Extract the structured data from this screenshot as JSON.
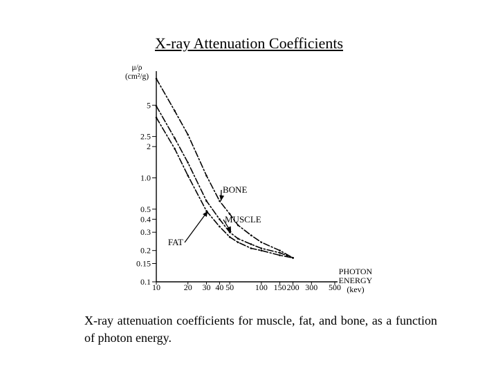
{
  "chart_data": {
    "type": "line",
    "title": "X-ray Attenuation Coefficients",
    "ylabel_line1": "μ/ρ",
    "ylabel_line2": "(cm²/g)",
    "xlabel": [
      "PHOTON",
      "ENERGY",
      "(kev)"
    ],
    "y_ticks": [
      "5",
      "2.5",
      "2",
      "1.0",
      "0.5",
      "0.4",
      "0.3",
      "0.2",
      "0.15",
      "0.1"
    ],
    "x_ticks": [
      "10",
      "20",
      "30",
      "40",
      "50",
      "100",
      "150",
      "200",
      "300",
      "500"
    ],
    "x_log": true,
    "y_log": true,
    "xlim": [
      10,
      500
    ],
    "ylim": [
      0.1,
      10
    ],
    "series": [
      {
        "name": "BONE",
        "x": [
          10,
          15,
          20,
          30,
          40,
          50,
          60,
          80,
          100,
          150,
          200
        ],
        "y": [
          9.0,
          4.4,
          2.6,
          1.05,
          0.6,
          0.45,
          0.35,
          0.28,
          0.24,
          0.2,
          0.17
        ],
        "style": "dash-dot"
      },
      {
        "name": "MUSCLE",
        "x": [
          10,
          15,
          20,
          30,
          40,
          50,
          60,
          80,
          100,
          150,
          200
        ],
        "y": [
          4.9,
          2.4,
          1.4,
          0.6,
          0.4,
          0.3,
          0.26,
          0.23,
          0.21,
          0.19,
          0.17
        ],
        "style": "dash-dot"
      },
      {
        "name": "FAT",
        "x": [
          10,
          15,
          20,
          30,
          40,
          50,
          60,
          80,
          100,
          150,
          200
        ],
        "y": [
          3.8,
          1.9,
          1.05,
          0.48,
          0.34,
          0.27,
          0.24,
          0.21,
          0.2,
          0.18,
          0.17
        ],
        "style": "dash-dot"
      }
    ],
    "annotations": [
      {
        "text": "BONE",
        "series": "BONE"
      },
      {
        "text": "MUSCLE",
        "series": "MUSCLE"
      },
      {
        "text": "FAT",
        "series": "FAT"
      }
    ]
  },
  "caption": "X-ray attenuation coefficients for muscle, fat, and bone, as a function of photon energy."
}
